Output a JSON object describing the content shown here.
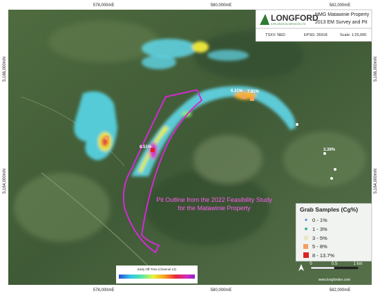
{
  "grid_labels": {
    "easting": [
      "578,000mE",
      "580,000mE",
      "582,000mE"
    ],
    "northing": [
      "5,166,000mN",
      "5,164,000mN"
    ]
  },
  "header": {
    "company": "LONGFORD",
    "company_sub": "EXPLORATION SERVICES LTD",
    "title": "NMG Matawinie Property",
    "subtitle": "2013 EM Survey and Pit",
    "ticker": "TSXV: NED",
    "epsg": "EPSG: 26918",
    "scale": "Scale: 1:25,000"
  },
  "annotation": [
    "Pit Outline from the 2022 Feasibility Study",
    "for the Matawinie Property"
  ],
  "samples": [
    "6.21%",
    "7.81%",
    "8.51%",
    "3.39%"
  ],
  "legend": {
    "title": "Grab Samples (Cg%)",
    "items": [
      "0 - 1%",
      "1 - 3%",
      "3 - 5%",
      "5 - 8%",
      "8 - 13.7%"
    ]
  },
  "colorbar": {
    "title": "Early Off-Time (Channel 13)"
  },
  "scale_bar": [
    "0",
    "0.5",
    "1 km"
  ],
  "website": "www.longfordex.com"
}
